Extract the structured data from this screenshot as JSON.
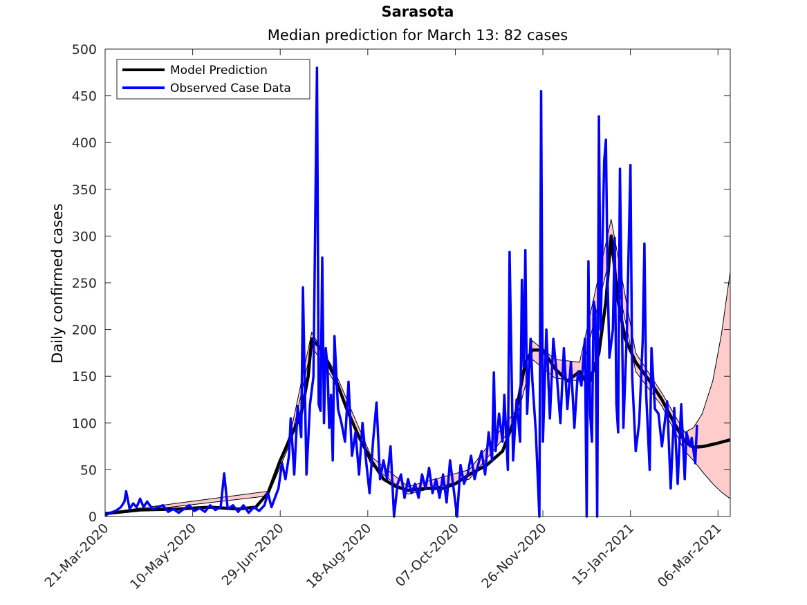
{
  "chart_data": {
    "type": "line",
    "title": "Sarasota",
    "subtitle": "Median prediction for March 13: 82 cases",
    "ylabel": "Daily confirmed cases",
    "xlabel": "",
    "x_start": "2020-03-21",
    "x_end": "2021-03-13",
    "ylim": [
      0,
      500
    ],
    "yticks": [
      0,
      50,
      100,
      150,
      200,
      250,
      300,
      350,
      400,
      450,
      500
    ],
    "xtick_labels": [
      "21-Mar-2020",
      "10-May-2020",
      "29-Jun-2020",
      "18-Aug-2020",
      "07-Oct-2020",
      "26-Nov-2020",
      "15-Jan-2021",
      "06-Mar-2021"
    ],
    "grid": false,
    "legend_position": "top-left",
    "colors": {
      "prediction": "#000000",
      "observed": "#0000ff",
      "band_fill": "#ffcccc"
    },
    "series": [
      {
        "name": "Model Prediction",
        "points": [
          [
            "2020-03-21",
            3
          ],
          [
            "2020-04-10",
            7
          ],
          [
            "2020-05-01",
            8
          ],
          [
            "2020-05-20",
            10
          ],
          [
            "2020-06-05",
            8
          ],
          [
            "2020-06-15",
            10
          ],
          [
            "2020-06-22",
            25
          ],
          [
            "2020-06-29",
            60
          ],
          [
            "2020-07-05",
            85
          ],
          [
            "2020-07-11",
            110
          ],
          [
            "2020-07-15",
            150
          ],
          [
            "2020-07-17",
            190
          ],
          [
            "2020-07-22",
            180
          ],
          [
            "2020-07-30",
            150
          ],
          [
            "2020-08-06",
            115
          ],
          [
            "2020-08-13",
            85
          ],
          [
            "2020-08-20",
            60
          ],
          [
            "2020-08-27",
            40
          ],
          [
            "2020-09-03",
            32
          ],
          [
            "2020-09-10",
            28
          ],
          [
            "2020-09-20",
            30
          ],
          [
            "2020-09-30",
            30
          ],
          [
            "2020-10-07",
            35
          ],
          [
            "2020-10-15",
            45
          ],
          [
            "2020-10-25",
            55
          ],
          [
            "2020-11-03",
            70
          ],
          [
            "2020-11-10",
            105
          ],
          [
            "2020-11-16",
            165
          ],
          [
            "2020-11-20",
            178
          ],
          [
            "2020-11-26",
            178
          ],
          [
            "2020-12-03",
            158
          ],
          [
            "2020-12-10",
            145
          ],
          [
            "2020-12-17",
            155
          ],
          [
            "2020-12-22",
            140
          ],
          [
            "2020-12-28",
            175
          ],
          [
            "2021-01-01",
            230
          ],
          [
            "2021-01-04",
            300
          ],
          [
            "2021-01-08",
            230
          ],
          [
            "2021-01-12",
            190
          ],
          [
            "2021-01-18",
            165
          ],
          [
            "2021-01-26",
            145
          ],
          [
            "2021-02-02",
            125
          ],
          [
            "2021-02-09",
            100
          ],
          [
            "2021-02-15",
            80
          ],
          [
            "2021-02-20",
            74
          ],
          [
            "2021-02-26",
            75
          ],
          [
            "2021-03-05",
            78
          ],
          [
            "2021-03-13",
            82
          ]
        ]
      },
      {
        "name": "Observed Case Data",
        "points": [
          [
            "2020-03-21",
            1
          ],
          [
            "2020-03-24",
            4
          ],
          [
            "2020-03-27",
            6
          ],
          [
            "2020-03-30",
            10
          ],
          [
            "2020-04-01",
            16
          ],
          [
            "2020-04-02",
            27
          ],
          [
            "2020-04-04",
            8
          ],
          [
            "2020-04-06",
            14
          ],
          [
            "2020-04-08",
            10
          ],
          [
            "2020-04-10",
            19
          ],
          [
            "2020-04-12",
            10
          ],
          [
            "2020-04-14",
            16
          ],
          [
            "2020-04-17",
            8
          ],
          [
            "2020-04-20",
            10
          ],
          [
            "2020-04-23",
            12
          ],
          [
            "2020-04-26",
            5
          ],
          [
            "2020-04-29",
            8
          ],
          [
            "2020-05-02",
            4
          ],
          [
            "2020-05-05",
            8
          ],
          [
            "2020-05-08",
            12
          ],
          [
            "2020-05-11",
            6
          ],
          [
            "2020-05-14",
            9
          ],
          [
            "2020-05-17",
            5
          ],
          [
            "2020-05-20",
            12
          ],
          [
            "2020-05-23",
            7
          ],
          [
            "2020-05-26",
            10
          ],
          [
            "2020-05-28",
            46
          ],
          [
            "2020-05-30",
            8
          ],
          [
            "2020-06-02",
            12
          ],
          [
            "2020-06-05",
            5
          ],
          [
            "2020-06-08",
            12
          ],
          [
            "2020-06-11",
            4
          ],
          [
            "2020-06-14",
            10
          ],
          [
            "2020-06-17",
            6
          ],
          [
            "2020-06-20",
            12
          ],
          [
            "2020-06-22",
            25
          ],
          [
            "2020-06-24",
            10
          ],
          [
            "2020-06-26",
            20
          ],
          [
            "2020-06-28",
            30
          ],
          [
            "2020-06-30",
            57
          ],
          [
            "2020-07-02",
            40
          ],
          [
            "2020-07-04",
            65
          ],
          [
            "2020-07-05",
            105
          ],
          [
            "2020-07-07",
            45
          ],
          [
            "2020-07-09",
            118
          ],
          [
            "2020-07-11",
            85
          ],
          [
            "2020-07-12",
            245
          ],
          [
            "2020-07-14",
            45
          ],
          [
            "2020-07-16",
            120
          ],
          [
            "2020-07-18",
            150
          ],
          [
            "2020-07-20",
            480
          ],
          [
            "2020-07-21",
            120
          ],
          [
            "2020-07-22",
            113
          ],
          [
            "2020-07-23",
            277
          ],
          [
            "2020-07-24",
            100
          ],
          [
            "2020-07-25",
            180
          ],
          [
            "2020-07-26",
            160
          ],
          [
            "2020-07-27",
            95
          ],
          [
            "2020-07-28",
            130
          ],
          [
            "2020-07-29",
            60
          ],
          [
            "2020-07-30",
            193
          ],
          [
            "2020-08-01",
            115
          ],
          [
            "2020-08-03",
            100
          ],
          [
            "2020-08-05",
            80
          ],
          [
            "2020-08-07",
            144
          ],
          [
            "2020-08-09",
            65
          ],
          [
            "2020-08-11",
            90
          ],
          [
            "2020-08-13",
            45
          ],
          [
            "2020-08-15",
            100
          ],
          [
            "2020-08-17",
            60
          ],
          [
            "2020-08-19",
            25
          ],
          [
            "2020-08-21",
            80
          ],
          [
            "2020-08-23",
            122
          ],
          [
            "2020-08-25",
            40
          ],
          [
            "2020-08-27",
            60
          ],
          [
            "2020-08-29",
            40
          ],
          [
            "2020-08-31",
            75
          ],
          [
            "2020-09-02",
            0
          ],
          [
            "2020-09-04",
            35
          ],
          [
            "2020-09-06",
            45
          ],
          [
            "2020-09-08",
            20
          ],
          [
            "2020-09-10",
            40
          ],
          [
            "2020-09-12",
            25
          ],
          [
            "2020-09-14",
            35
          ],
          [
            "2020-09-16",
            20
          ],
          [
            "2020-09-18",
            45
          ],
          [
            "2020-09-20",
            30
          ],
          [
            "2020-09-22",
            52
          ],
          [
            "2020-09-24",
            25
          ],
          [
            "2020-09-26",
            40
          ],
          [
            "2020-09-28",
            20
          ],
          [
            "2020-09-30",
            45
          ],
          [
            "2020-10-02",
            15
          ],
          [
            "2020-10-04",
            60
          ],
          [
            "2020-10-06",
            30
          ],
          [
            "2020-10-08",
            0
          ],
          [
            "2020-10-10",
            55
          ],
          [
            "2020-10-12",
            35
          ],
          [
            "2020-10-14",
            45
          ],
          [
            "2020-10-16",
            65
          ],
          [
            "2020-10-18",
            40
          ],
          [
            "2020-10-20",
            55
          ],
          [
            "2020-10-22",
            70
          ],
          [
            "2020-10-24",
            45
          ],
          [
            "2020-10-26",
            90
          ],
          [
            "2020-10-28",
            60
          ],
          [
            "2020-10-29",
            154
          ],
          [
            "2020-10-30",
            70
          ],
          [
            "2020-11-01",
            110
          ],
          [
            "2020-11-03",
            80
          ],
          [
            "2020-11-04",
            130
          ],
          [
            "2020-11-06",
            50
          ],
          [
            "2020-11-07",
            283
          ],
          [
            "2020-11-09",
            60
          ],
          [
            "2020-11-11",
            125
          ],
          [
            "2020-11-13",
            80
          ],
          [
            "2020-11-14",
            253
          ],
          [
            "2020-11-15",
            160
          ],
          [
            "2020-11-16",
            285
          ],
          [
            "2020-11-17",
            110
          ],
          [
            "2020-11-19",
            190
          ],
          [
            "2020-11-20",
            145
          ],
          [
            "2020-11-22",
            90
          ],
          [
            "2020-11-24",
            0
          ],
          [
            "2020-11-25",
            455
          ],
          [
            "2020-11-26",
            80
          ],
          [
            "2020-11-28",
            200
          ],
          [
            "2020-11-30",
            105
          ],
          [
            "2020-12-02",
            190
          ],
          [
            "2020-12-04",
            150
          ],
          [
            "2020-12-06",
            100
          ],
          [
            "2020-12-08",
            180
          ],
          [
            "2020-12-10",
            115
          ],
          [
            "2020-12-12",
            165
          ],
          [
            "2020-12-14",
            95
          ],
          [
            "2020-12-16",
            155
          ],
          [
            "2020-12-18",
            140
          ],
          [
            "2020-12-20",
            190
          ],
          [
            "2020-12-21",
            0
          ],
          [
            "2020-12-22",
            273
          ],
          [
            "2020-12-23",
            110
          ],
          [
            "2020-12-24",
            80
          ],
          [
            "2020-12-25",
            230
          ],
          [
            "2020-12-26",
            220
          ],
          [
            "2020-12-27",
            0
          ],
          [
            "2020-12-28",
            428
          ],
          [
            "2020-12-29",
            200
          ],
          [
            "2020-12-31",
            380
          ],
          [
            "2021-01-01",
            403
          ],
          [
            "2021-01-02",
            250
          ],
          [
            "2021-01-03",
            170
          ],
          [
            "2021-01-05",
            200
          ],
          [
            "2021-01-06",
            298
          ],
          [
            "2021-01-07",
            120
          ],
          [
            "2021-01-08",
            90
          ],
          [
            "2021-01-09",
            372
          ],
          [
            "2021-01-11",
            95
          ],
          [
            "2021-01-13",
            200
          ],
          [
            "2021-01-15",
            376
          ],
          [
            "2021-01-16",
            150
          ],
          [
            "2021-01-18",
            70
          ],
          [
            "2021-01-20",
            100
          ],
          [
            "2021-01-22",
            188
          ],
          [
            "2021-01-23",
            292
          ],
          [
            "2021-01-24",
            130
          ],
          [
            "2021-01-26",
            50
          ],
          [
            "2021-01-27",
            180
          ],
          [
            "2021-01-29",
            115
          ],
          [
            "2021-01-31",
            110
          ],
          [
            "2021-02-02",
            75
          ],
          [
            "2021-02-05",
            123
          ],
          [
            "2021-02-07",
            30
          ],
          [
            "2021-02-09",
            116
          ],
          [
            "2021-02-11",
            35
          ],
          [
            "2021-02-13",
            120
          ],
          [
            "2021-02-15",
            40
          ],
          [
            "2021-02-16",
            90
          ],
          [
            "2021-02-18",
            75
          ],
          [
            "2021-02-19",
            84
          ],
          [
            "2021-02-21",
            57
          ],
          [
            "2021-02-22",
            98
          ]
        ]
      }
    ],
    "band": {
      "upper": [
        [
          "2020-03-21",
          4
        ],
        [
          "2020-06-22",
          27
        ],
        [
          "2020-07-05",
          90
        ],
        [
          "2020-07-17",
          197
        ],
        [
          "2020-07-30",
          156
        ],
        [
          "2020-08-20",
          64
        ],
        [
          "2020-09-10",
          32
        ],
        [
          "2020-10-15",
          50
        ],
        [
          "2020-11-10",
          112
        ],
        [
          "2020-11-20",
          188
        ],
        [
          "2020-12-03",
          168
        ],
        [
          "2020-12-17",
          165
        ],
        [
          "2021-01-04",
          318
        ],
        [
          "2021-01-18",
          175
        ],
        [
          "2021-02-02",
          132
        ],
        [
          "2021-02-15",
          90
        ],
        [
          "2021-02-20",
          95
        ],
        [
          "2021-02-25",
          110
        ],
        [
          "2021-03-03",
          145
        ],
        [
          "2021-03-08",
          195
        ],
        [
          "2021-03-13",
          262
        ]
      ],
      "lower": [
        [
          "2020-03-21",
          2
        ],
        [
          "2020-06-22",
          22
        ],
        [
          "2020-07-05",
          80
        ],
        [
          "2020-07-17",
          182
        ],
        [
          "2020-07-30",
          144
        ],
        [
          "2020-08-20",
          55
        ],
        [
          "2020-09-10",
          24
        ],
        [
          "2020-10-15",
          40
        ],
        [
          "2020-11-10",
          98
        ],
        [
          "2020-11-20",
          168
        ],
        [
          "2020-12-03",
          148
        ],
        [
          "2020-12-17",
          145
        ],
        [
          "2021-01-04",
          283
        ],
        [
          "2021-01-18",
          155
        ],
        [
          "2021-02-02",
          118
        ],
        [
          "2021-02-15",
          70
        ],
        [
          "2021-02-20",
          60
        ],
        [
          "2021-02-25",
          48
        ],
        [
          "2021-03-03",
          35
        ],
        [
          "2021-03-08",
          26
        ],
        [
          "2021-03-13",
          19
        ]
      ]
    }
  }
}
